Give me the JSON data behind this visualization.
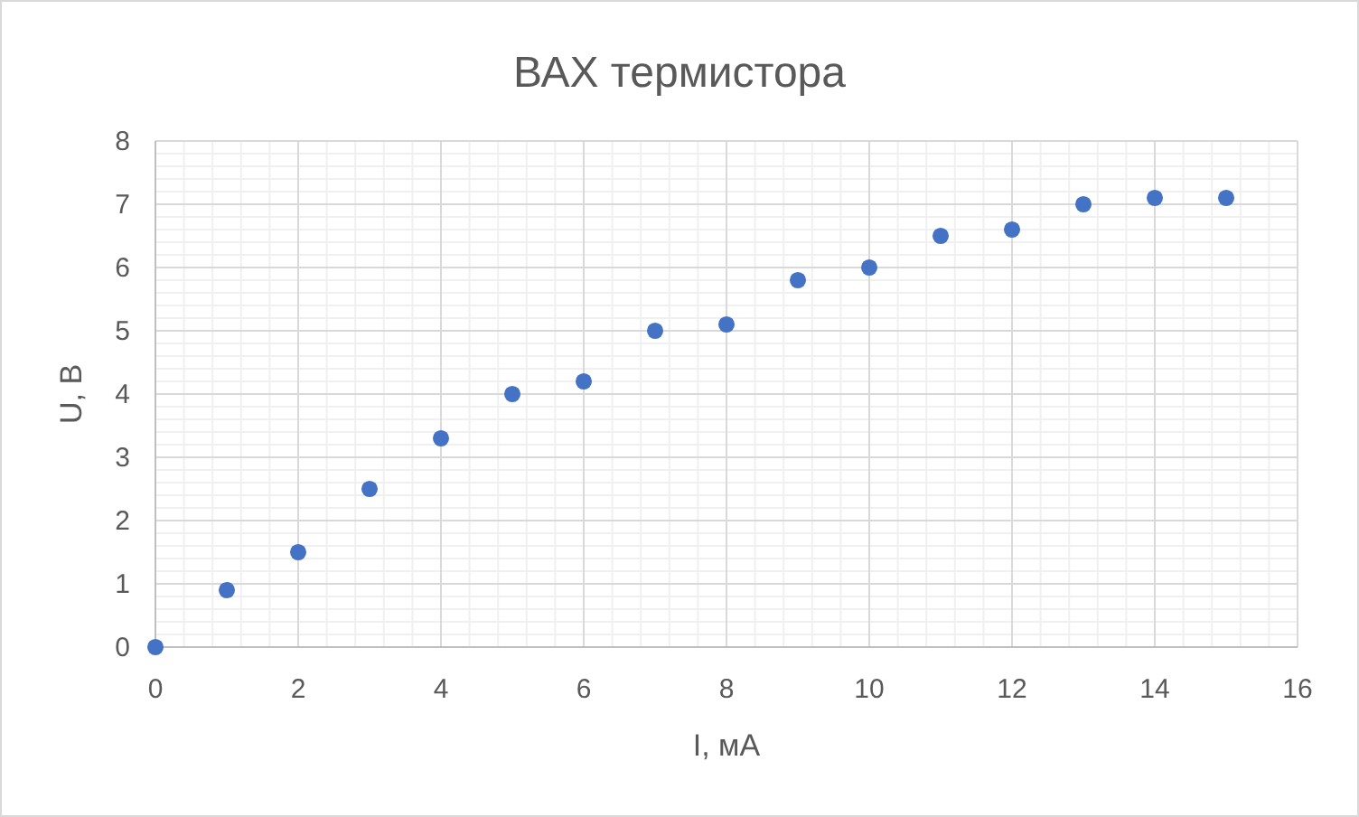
{
  "chart_data": {
    "type": "scatter",
    "title": "ВАХ термистора",
    "xlabel": "I, мА",
    "ylabel": "U, В",
    "x": [
      0,
      1,
      2,
      3,
      4,
      5,
      6,
      7,
      8,
      9,
      10,
      11,
      12,
      13,
      14,
      15
    ],
    "series": [
      {
        "color": "#4472c4",
        "values": [
          0,
          0.9,
          1.5,
          2.5,
          3.3,
          4.0,
          4.2,
          5.0,
          5.1,
          5.8,
          6.0,
          6.5,
          6.6,
          7.0,
          7.1,
          7.1
        ]
      }
    ],
    "xlim": [
      0,
      16
    ],
    "xticks": [
      0,
      2,
      4,
      6,
      8,
      10,
      12,
      14,
      16
    ],
    "ylim": [
      0,
      8
    ],
    "yticks": [
      0,
      1,
      2,
      3,
      4,
      5,
      6,
      7,
      8
    ],
    "grid": true,
    "marker": "circle"
  }
}
